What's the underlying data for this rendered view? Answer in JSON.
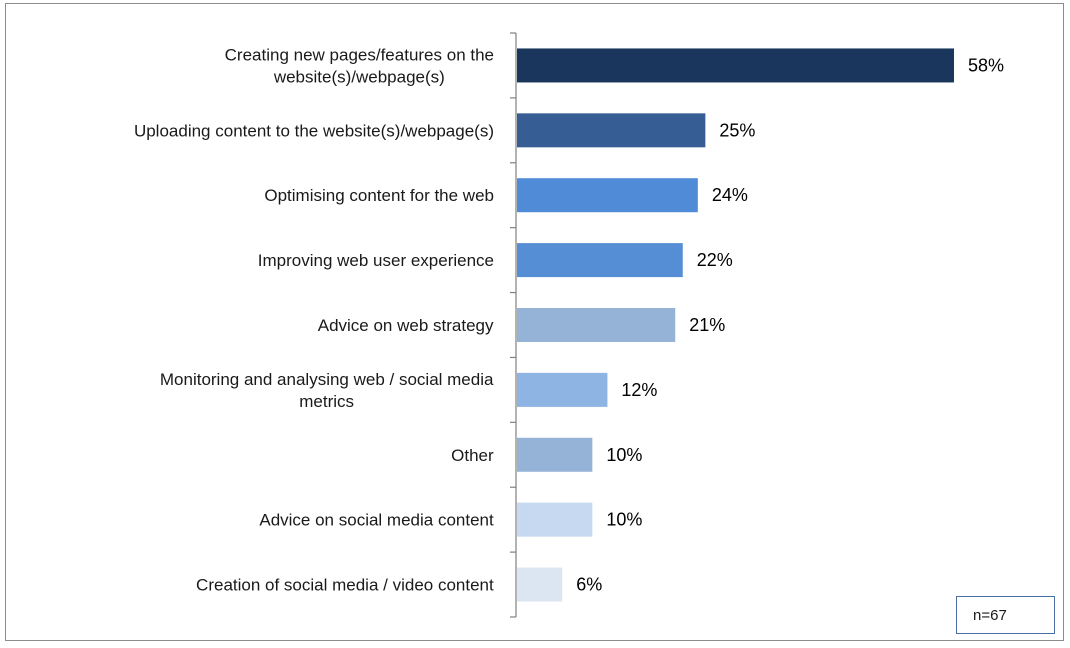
{
  "chart_data": {
    "type": "bar",
    "orientation": "horizontal",
    "categories": [
      [
        "Creating new pages/features on the",
        "website(s)/webpage(s)"
      ],
      [
        "Uploading content to the website(s)/webpage(s)"
      ],
      [
        "Optimising content for the web"
      ],
      [
        "Improving web user experience"
      ],
      [
        "Advice on web strategy"
      ],
      [
        "Monitoring and analysing web / social media",
        "metrics"
      ],
      [
        "Other"
      ],
      [
        "Advice on social media content"
      ],
      [
        "Creation of social media / video content"
      ]
    ],
    "values": [
      58,
      25,
      24,
      22,
      21,
      12,
      10,
      10,
      6
    ],
    "value_labels": [
      "58%",
      "25%",
      "24%",
      "22%",
      "21%",
      "12%",
      "10%",
      "10%",
      "6%"
    ],
    "colors": [
      "#1b365d",
      "#375e94",
      "#4f8bd6",
      "#558ed5",
      "#95b3d7",
      "#8db4e2",
      "#95b3d7",
      "#c6d9f1",
      "#dce6f2"
    ],
    "xlim": [
      0,
      60
    ],
    "grid": false,
    "legend": "none"
  },
  "note": "n=67"
}
